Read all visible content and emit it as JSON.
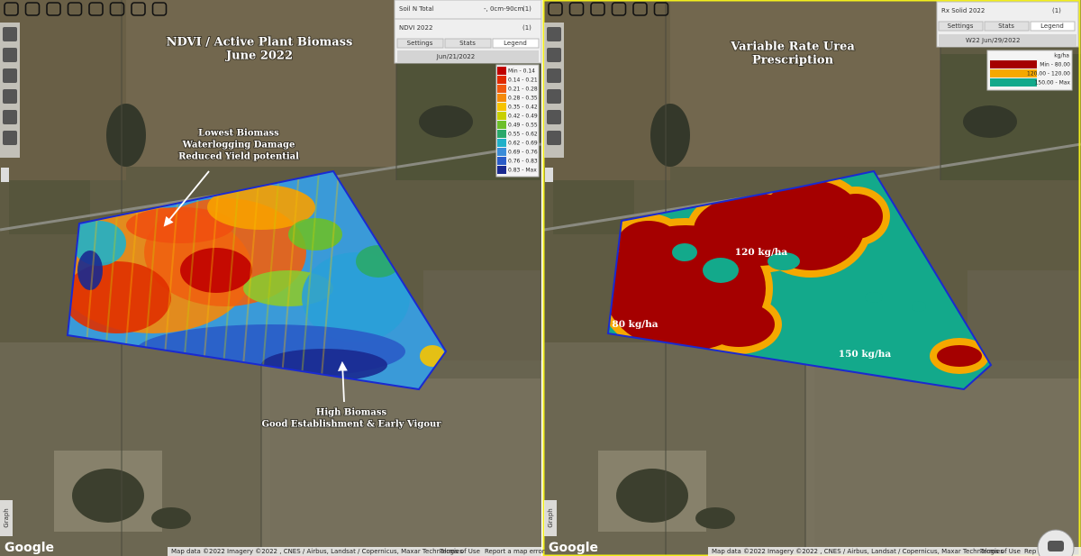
{
  "left": {
    "layer_panel": {
      "top_layer": "Soil N Total",
      "top_layer_depth": "-, 0cm-90cm",
      "top_layer_count": "(1)",
      "layer": "NDVI 2022",
      "layer_count": "(1)",
      "tabs": [
        "Settings",
        "Stats",
        "Legend"
      ],
      "date": "Jun/21/2022",
      "legend": [
        {
          "label": "Min - 0.14",
          "color": "#c00000"
        },
        {
          "label": "0.14 - 0.21",
          "color": "#e02a00"
        },
        {
          "label": "0.21 - 0.28",
          "color": "#f05a10"
        },
        {
          "label": "0.28 - 0.35",
          "color": "#f58a0a"
        },
        {
          "label": "0.35 - 0.42",
          "color": "#f7c400"
        },
        {
          "label": "0.42 - 0.49",
          "color": "#c8d000"
        },
        {
          "label": "0.49 - 0.55",
          "color": "#6cbf2a"
        },
        {
          "label": "0.55 - 0.62",
          "color": "#2aa86a"
        },
        {
          "label": "0.62 - 0.69",
          "color": "#20b0c8"
        },
        {
          "label": "0.69 - 0.76",
          "color": "#3a8cd8"
        },
        {
          "label": "0.76 - 0.83",
          "color": "#2a5cc8"
        },
        {
          "label": "0.83 - Max",
          "color": "#1a2a90"
        }
      ]
    },
    "title": [
      "NDVI / Active Plant Biomass",
      "June 2022"
    ],
    "annotations": [
      [
        "Lowest Biomass",
        "Waterlogging Damage",
        "Reduced Yield potential"
      ],
      [
        "High Biomass",
        "Good Establishment & Early Vigour"
      ]
    ],
    "graph_tab": "Graph",
    "google": "Google",
    "attribution": "Map data ©2022 Imagery ©2022 , CNES / Airbus, Landsat / Copernicus, Maxar Technologies",
    "terms": "Terms of Use",
    "report": "Report a map error"
  },
  "right": {
    "layer_panel": {
      "layer": "Rx Solid 2022",
      "layer_count": "(1)",
      "tabs": [
        "Settings",
        "Stats",
        "Legend"
      ],
      "date": "W22 Jun/29/2022",
      "unit": "kg/ha",
      "legend": [
        {
          "label": "Min - 80.00",
          "color": "#a50000"
        },
        {
          "label": "120.00 - 120.00",
          "color": "#f5a800"
        },
        {
          "label": "150.00 - Max",
          "color": "#13a98b"
        }
      ]
    },
    "title": [
      "Variable Rate Urea",
      "Prescription"
    ],
    "zone_labels": [
      "120 kg/ha",
      "80 kg/ha",
      "150 kg/ha"
    ],
    "graph_tab": "Graph",
    "google": "Google",
    "attribution": "Map data ©2022 Imagery ©2022 , CNES / Airbus, Landsat / Copernicus, Maxar Technologies",
    "terms": "Terms of Use",
    "report": "Rep"
  }
}
